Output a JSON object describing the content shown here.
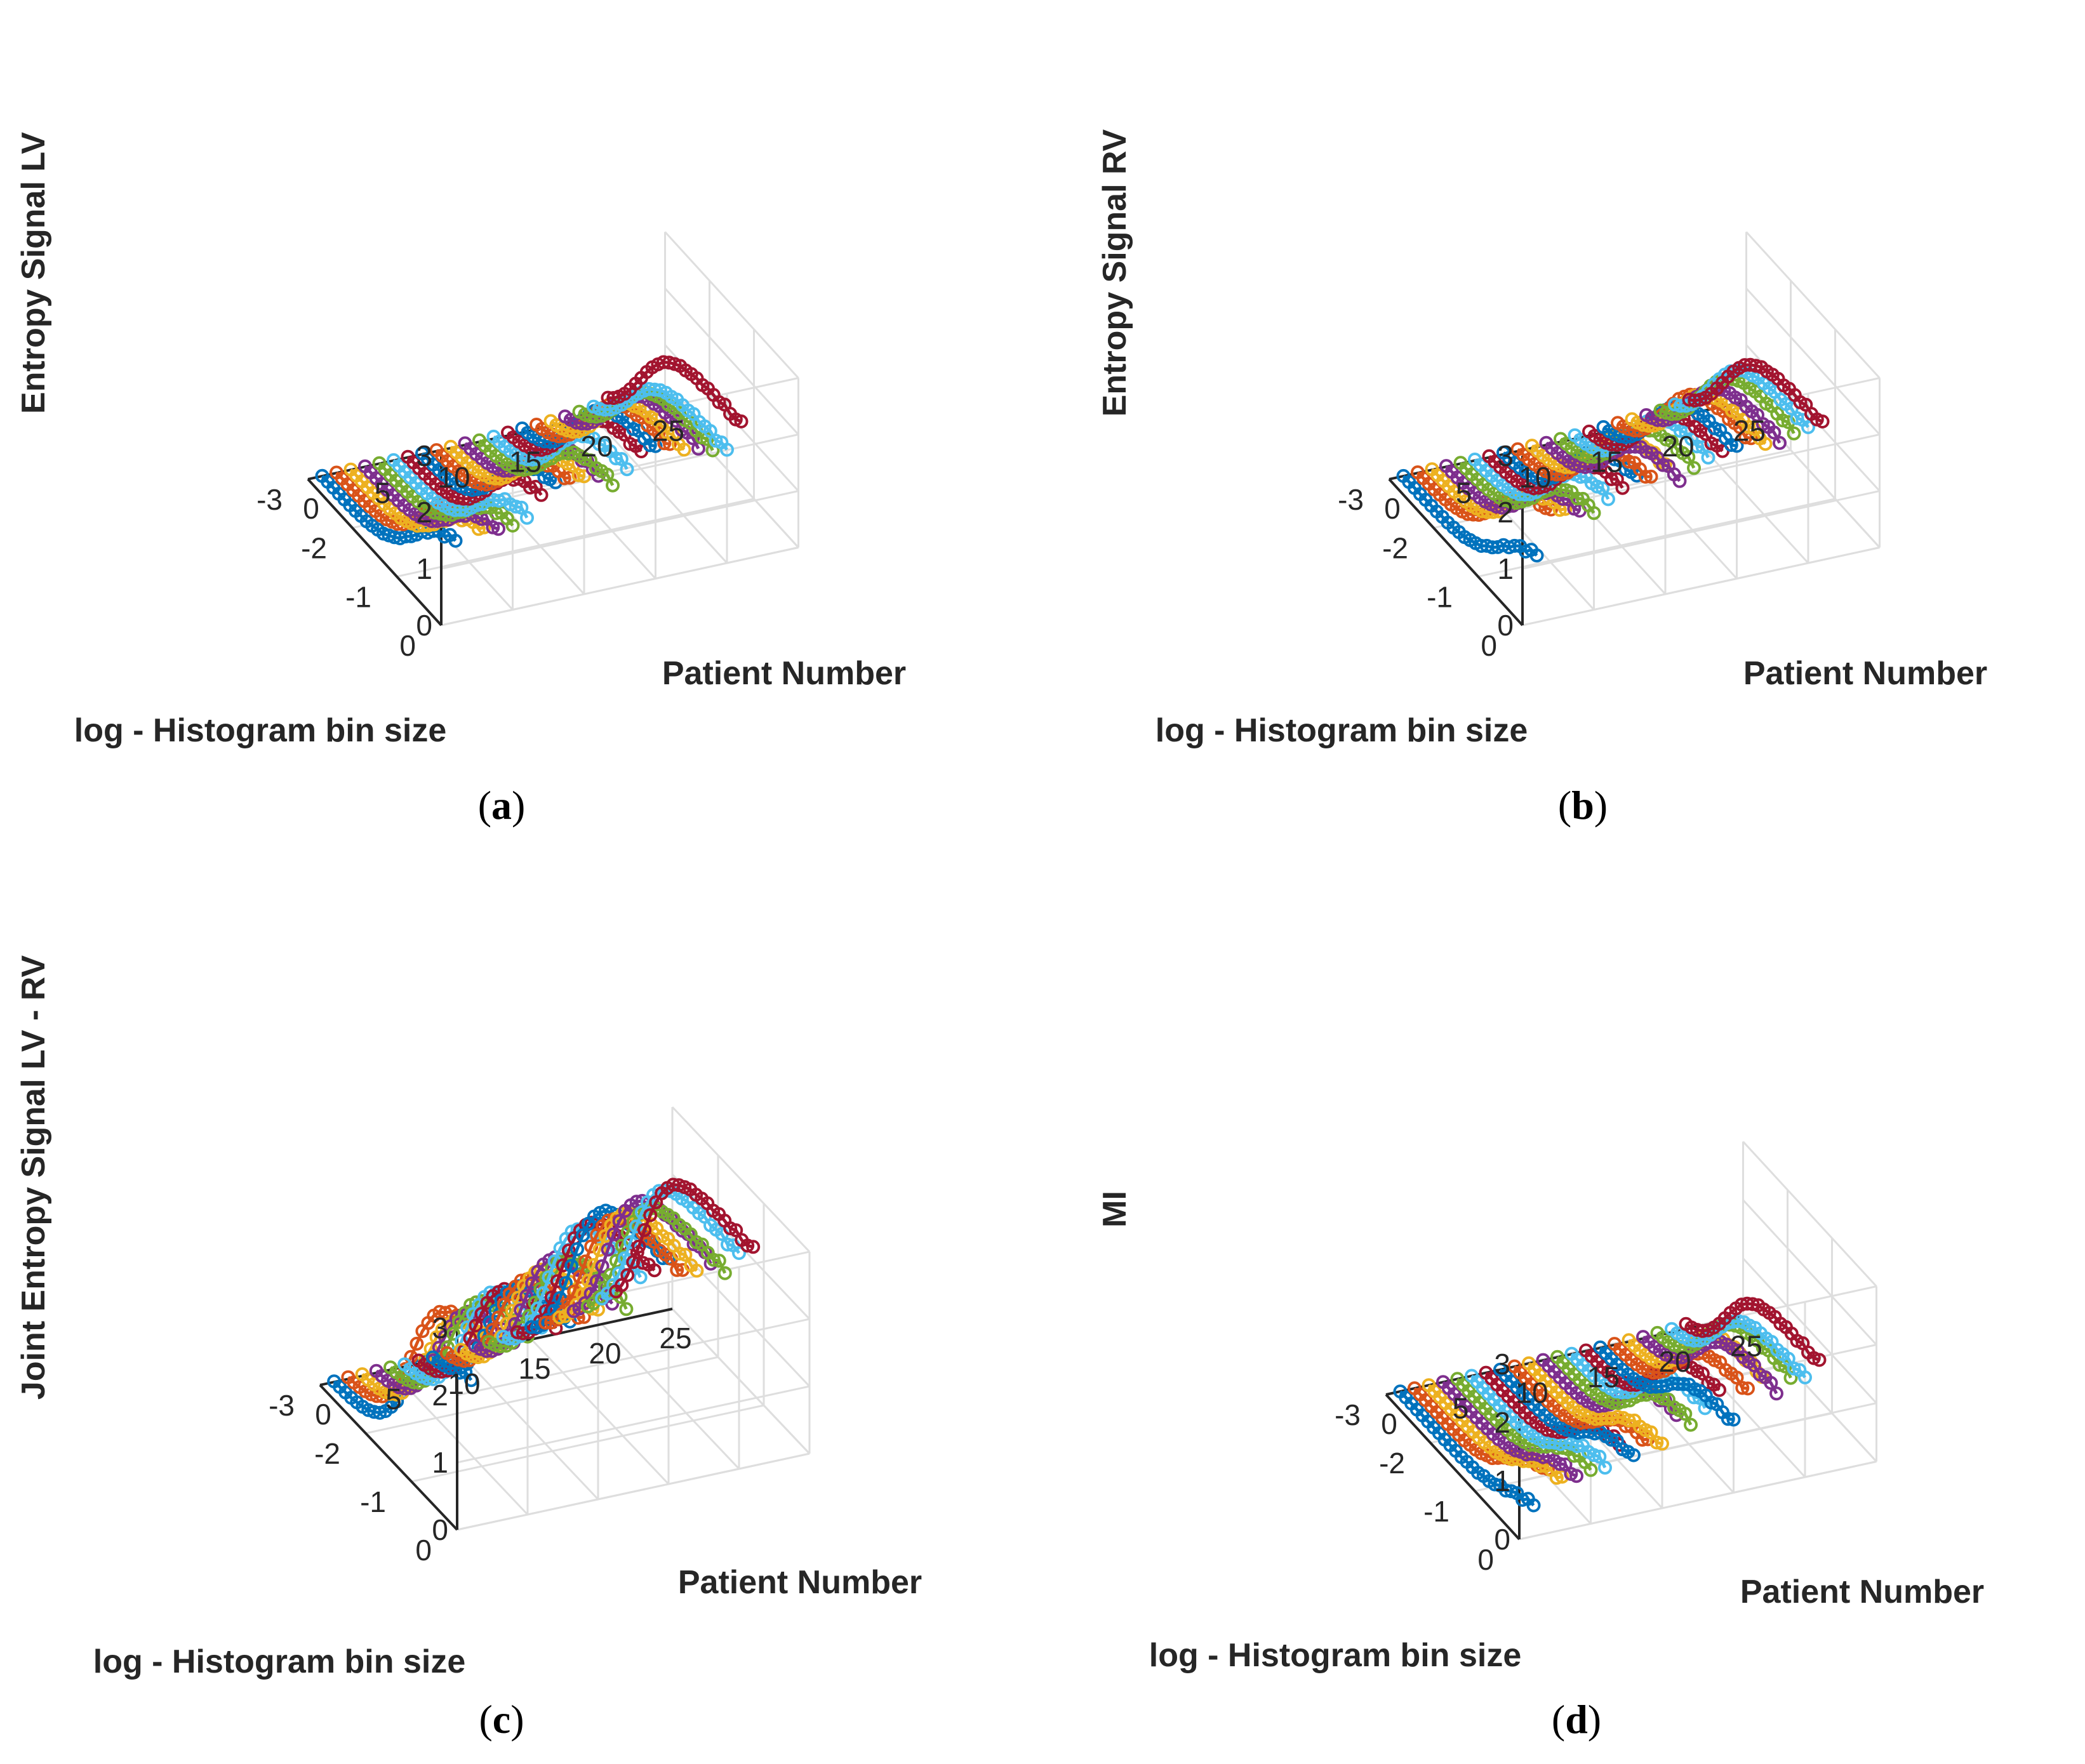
{
  "figure": {
    "colors": [
      "#0072BD",
      "#D95319",
      "#EDB120",
      "#7E2F8E",
      "#77AC30",
      "#4DBEEE",
      "#A2142F"
    ],
    "panels": [
      {
        "caption": "a",
        "chart_data": {
          "type": "line",
          "projection": "3d",
          "title": "",
          "xlabel": "Patient Number",
          "ylabel": "log - Histogram bin size",
          "zlabel": "Entropy Signal LV",
          "xlim": [
            0,
            25
          ],
          "ylim": [
            -3,
            0
          ],
          "zlim": [
            0,
            3
          ],
          "xticks": [
            "0",
            "5",
            "10",
            "15",
            "20",
            "25"
          ],
          "yticks": [
            "0",
            "-1",
            "-2",
            "-3"
          ],
          "zticks": [
            "0",
            "1",
            "2",
            "3"
          ],
          "y_samples": 25,
          "series_params": {
            "patients": 21,
            "start_values": [
              1.55,
              2.0,
              1.6,
              1.55,
              1.6,
              1.7,
              2.0,
              2.1,
              2.1,
              2.1,
              2.1,
              1.9,
              2.1,
              2.3,
              2.3,
              2.3,
              2.2,
              2.2,
              2.1,
              2.0,
              2.4
            ],
            "decay_midpoint_logbin": [
              -0.9,
              -1.0,
              -1.0,
              -1.05,
              -1.1,
              -1.1,
              -1.2,
              -1.3,
              -1.35,
              -1.4,
              -1.5,
              -1.5,
              -1.6,
              -1.7,
              -1.8,
              -1.85,
              -1.9,
              -2.0,
              -2.1,
              -2.2,
              -2.3
            ],
            "decay_width": 0.35
          }
        }
      },
      {
        "caption": "b",
        "chart_data": {
          "type": "line",
          "projection": "3d",
          "title": "",
          "xlabel": "Patient Number",
          "ylabel": "log - Histogram bin size",
          "zlabel": "Entropy Signal RV",
          "xlim": [
            0,
            25
          ],
          "ylim": [
            -3,
            0
          ],
          "zlim": [
            0,
            3
          ],
          "xticks": [
            "0",
            "5",
            "10",
            "15",
            "20",
            "25"
          ],
          "yticks": [
            "0",
            "-1",
            "-2",
            "-3"
          ],
          "zticks": [
            "0",
            "1",
            "2",
            "3"
          ],
          "y_samples": 25,
          "series_params": {
            "patients": 21,
            "start_values": [
              1.3,
              1.95,
              1.9,
              1.85,
              1.8,
              2.0,
              2.1,
              2.2,
              2.1,
              2.3,
              2.0,
              2.2,
              2.3,
              2.3,
              2.3,
              2.4,
              2.3,
              2.3,
              2.4,
              2.4,
              2.4
            ],
            "decay_midpoint_logbin": [
              -0.8,
              -1.2,
              -1.2,
              -1.25,
              -1.3,
              -1.35,
              -1.4,
              -1.5,
              -1.55,
              -1.6,
              -1.6,
              -1.7,
              -1.75,
              -1.8,
              -1.9,
              -1.95,
              -2.0,
              -2.05,
              -2.1,
              -2.2,
              -2.25
            ],
            "decay_width": 0.35
          }
        }
      },
      {
        "caption": "c",
        "chart_data": {
          "type": "line",
          "projection": "3d",
          "title": "",
          "xlabel": "Patient Number",
          "ylabel": "log - Histogram bin size",
          "zlabel": "Joint Entropy Signal LV - RV",
          "xlim": [
            0,
            25
          ],
          "ylim": [
            -3,
            0
          ],
          "zlim": [
            0,
            3
          ],
          "xticks": [
            "0",
            "5",
            "10",
            "15",
            "20",
            "25"
          ],
          "yticks": [
            "0",
            "-1",
            "-2",
            "-3"
          ],
          "zticks": [
            "0",
            "1",
            "2",
            "3"
          ],
          "y_samples": 25,
          "series_params": {
            "patients": 21,
            "start_values": [
              2.2,
              2.75,
              2.55,
              2.6,
              2.7,
              2.8,
              2.7,
              2.7,
              2.7,
              2.8,
              2.9,
              2.8,
              3.2,
              3.2,
              3.3,
              3.1,
              3.1,
              3.2,
              3.0,
              3.2,
              3.2
            ],
            "decay_midpoint_logbin": [
              -1.4,
              -1.6,
              -1.6,
              -1.65,
              -1.7,
              -1.7,
              -1.8,
              -1.8,
              -1.9,
              -1.9,
              -1.95,
              -2.0,
              -2.05,
              -2.1,
              -2.15,
              -2.2,
              -2.25,
              -2.3,
              -2.35,
              -2.4,
              -2.45
            ],
            "decay_width": 0.3
          }
        }
      },
      {
        "caption": "d",
        "chart_data": {
          "type": "line",
          "projection": "3d",
          "title": "",
          "xlabel": "Patient Number",
          "ylabel": "log - Histogram bin size",
          "zlabel": "MI",
          "xlim": [
            0,
            25
          ],
          "ylim": [
            -3,
            0
          ],
          "zlim": [
            0,
            3
          ],
          "xticks": [
            "0",
            "5",
            "10",
            "15",
            "20",
            "25"
          ],
          "yticks": [
            "0",
            "-1",
            "-2",
            "-3"
          ],
          "zticks": [
            "0",
            "1",
            "2",
            "3"
          ],
          "y_samples": 25,
          "series_params": {
            "patients": 21,
            "start_values": [
              0.6,
              1.1,
              0.9,
              0.9,
              1.0,
              1.0,
              1.3,
              1.0,
              1.2,
              1.1,
              1.6,
              1.4,
              1.6,
              1.8,
              1.2,
              1.7,
              1.9,
              1.6,
              1.8,
              1.7,
              1.9
            ],
            "decay_midpoint_logbin": [
              -0.6,
              -0.9,
              -0.9,
              -0.95,
              -1.0,
              -1.0,
              -1.05,
              -1.1,
              -1.15,
              -1.2,
              -1.25,
              -1.3,
              -1.4,
              -1.45,
              -1.5,
              -1.6,
              -1.7,
              -1.8,
              -1.9,
              -2.0,
              -2.1
            ],
            "decay_width": 0.3
          }
        }
      }
    ]
  }
}
